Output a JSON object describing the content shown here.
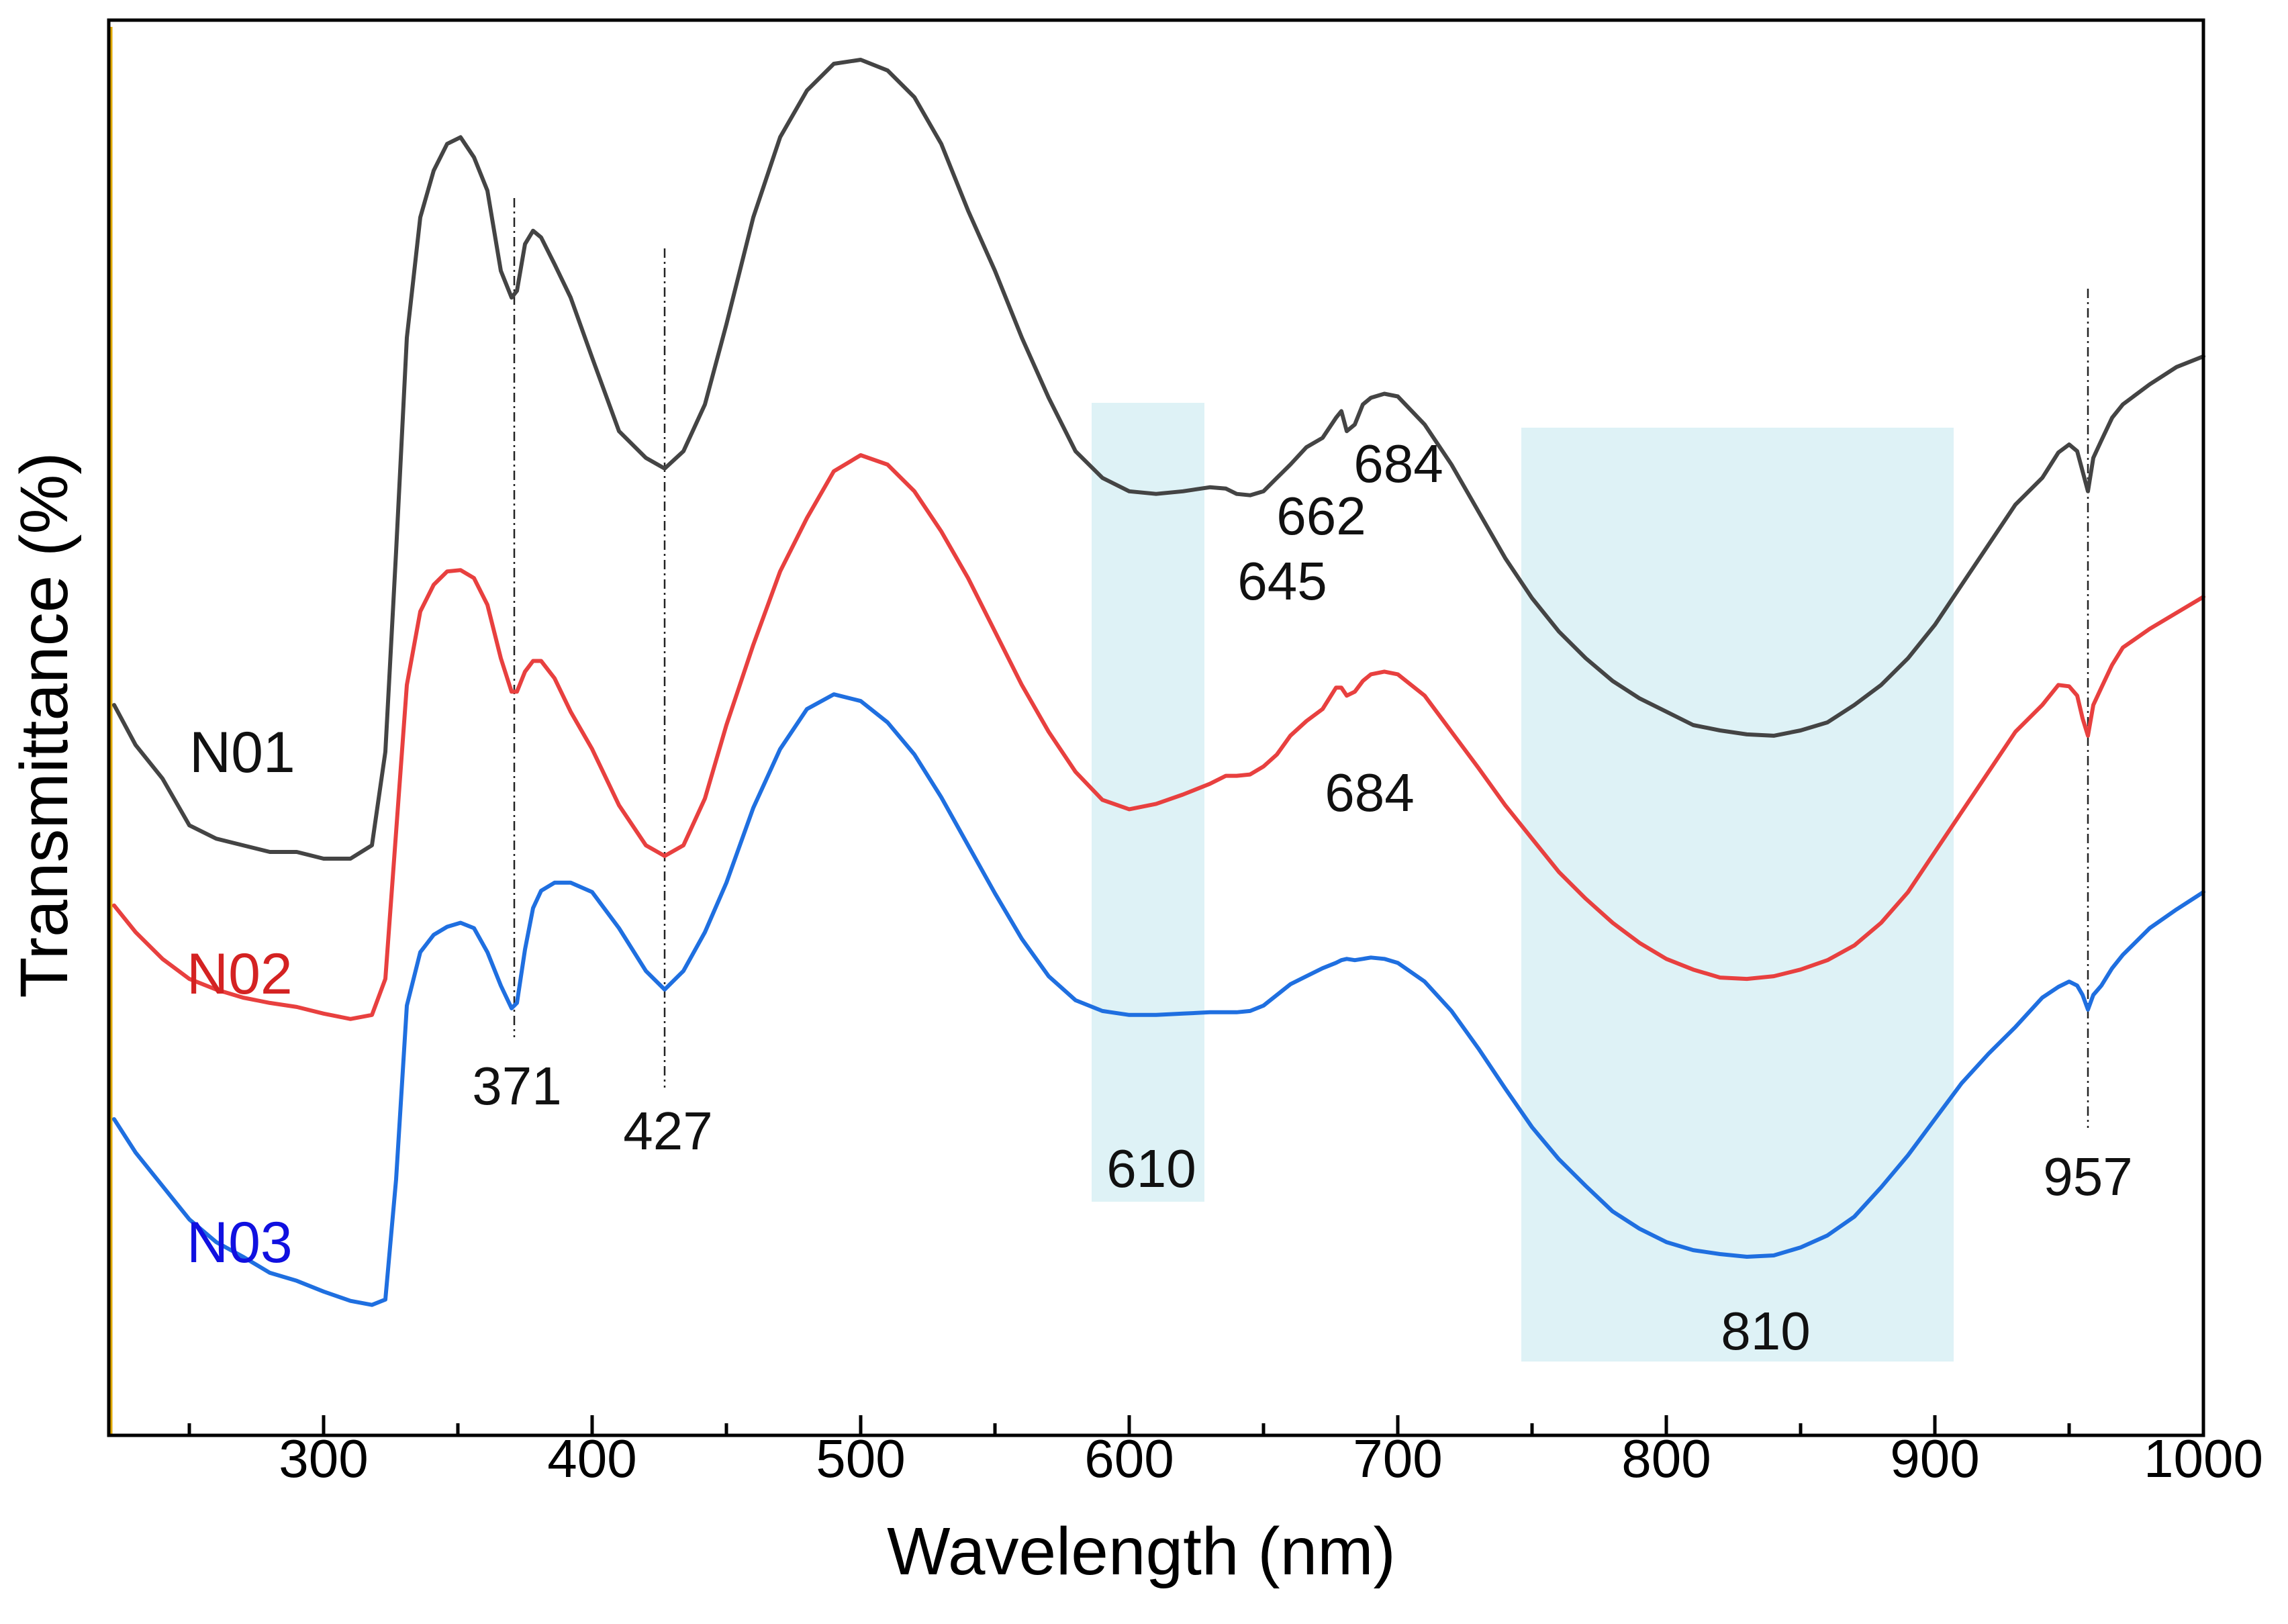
{
  "chart_data": {
    "type": "line",
    "title": "",
    "xlabel": "Wavelength (nm)",
    "ylabel": "Transmittance  (%)",
    "xlim": [
      220,
      1000
    ],
    "ylim": [
      0,
      100
    ],
    "x_ticks": [
      300,
      400,
      500,
      600,
      700,
      800,
      900,
      1000
    ],
    "y_ticks_shown": false,
    "grid": false,
    "legend": "inline text labels at left of curves",
    "series": [
      {
        "name": "N01",
        "color": "#444444",
        "label_color": "#111111",
        "x": [
          222,
          230,
          240,
          250,
          260,
          270,
          280,
          290,
          300,
          310,
          318,
          323,
          327,
          331,
          336,
          341,
          346,
          351,
          356,
          361,
          366,
          370,
          372,
          375,
          378,
          381,
          386,
          392,
          400,
          410,
          420,
          427,
          434,
          442,
          450,
          460,
          470,
          480,
          490,
          500,
          510,
          520,
          530,
          540,
          550,
          560,
          570,
          580,
          590,
          600,
          610,
          620,
          630,
          636,
          640,
          645,
          650,
          655,
          660,
          666,
          672,
          677,
          679,
          681,
          684,
          687,
          690,
          695,
          700,
          710,
          720,
          730,
          740,
          750,
          760,
          770,
          780,
          790,
          800,
          810,
          820,
          830,
          840,
          850,
          860,
          870,
          880,
          890,
          900,
          910,
          920,
          930,
          940,
          946,
          950,
          953,
          955,
          957,
          959,
          962,
          966,
          970,
          980,
          990,
          1000
        ],
        "y": [
          51.5,
          48.5,
          46,
          42.5,
          41.5,
          41,
          40.5,
          40.5,
          40,
          40,
          41,
          48,
          63,
          79,
          88,
          91.5,
          93.5,
          94,
          92.5,
          90,
          84,
          82,
          82.5,
          86,
          87,
          86.5,
          84.5,
          82,
          77.5,
          72,
          70,
          69.2,
          70.5,
          74,
          80,
          88,
          94,
          97.5,
          99.5,
          99.8,
          99,
          97,
          93.5,
          88.5,
          84,
          79,
          74.5,
          70.5,
          68.5,
          67.5,
          67.3,
          67.5,
          67.8,
          67.7,
          67.3,
          67.2,
          67.5,
          68.5,
          69.5,
          70.8,
          71.5,
          73,
          73.5,
          72,
          72.5,
          74,
          74.5,
          74.8,
          74.6,
          72.5,
          69.5,
          66,
          62.5,
          59.5,
          57,
          55,
          53.3,
          52,
          51,
          50,
          49.6,
          49.3,
          49.2,
          49.6,
          50.2,
          51.5,
          53,
          55,
          57.5,
          60.5,
          63.5,
          66.5,
          68.5,
          70.4,
          71,
          70.5,
          69,
          67.5,
          70,
          71.3,
          73,
          74,
          75.5,
          76.8,
          77.6
        ]
      },
      {
        "name": "N02",
        "color": "#e8403f",
        "label_color": "#d42222",
        "x": [
          222,
          230,
          240,
          250,
          260,
          270,
          280,
          290,
          300,
          310,
          318,
          323,
          327,
          331,
          336,
          341,
          346,
          351,
          356,
          361,
          366,
          370,
          372,
          375,
          378,
          381,
          386,
          392,
          400,
          410,
          420,
          427,
          434,
          442,
          450,
          460,
          470,
          480,
          490,
          500,
          510,
          520,
          530,
          540,
          550,
          560,
          570,
          580,
          590,
          600,
          610,
          620,
          630,
          636,
          640,
          645,
          650,
          655,
          660,
          666,
          672,
          677,
          679,
          681,
          684,
          687,
          690,
          695,
          700,
          710,
          720,
          730,
          740,
          750,
          760,
          770,
          780,
          790,
          800,
          810,
          820,
          830,
          840,
          850,
          860,
          870,
          880,
          890,
          900,
          910,
          920,
          930,
          940,
          946,
          950,
          953,
          955,
          957,
          959,
          962,
          966,
          970,
          980,
          990,
          1000
        ],
        "y": [
          36.5,
          34.5,
          32.5,
          31,
          30.2,
          29.6,
          29.2,
          28.9,
          28.4,
          28,
          28.3,
          31,
          42,
          53,
          58.5,
          60.5,
          61.5,
          61.6,
          61,
          59,
          55,
          52.5,
          52.5,
          54,
          54.8,
          54.8,
          53.5,
          51,
          48.2,
          44,
          41,
          40.2,
          41,
          44.5,
          50,
          56,
          61.5,
          65.5,
          69,
          70.2,
          69.5,
          67.5,
          64.5,
          61,
          57,
          53,
          49.5,
          46.5,
          44.4,
          43.7,
          44.1,
          44.8,
          45.6,
          46.2,
          46.2,
          46.3,
          46.9,
          47.8,
          49.2,
          50.3,
          51.2,
          52.8,
          52.8,
          52.2,
          52.5,
          53.3,
          53.8,
          54,
          53.8,
          52.2,
          49.5,
          46.8,
          44,
          41.5,
          39,
          37,
          35.2,
          33.7,
          32.5,
          31.7,
          31.1,
          31,
          31.2,
          31.7,
          32.4,
          33.5,
          35.2,
          37.5,
          40.5,
          43.5,
          46.5,
          49.5,
          51.5,
          53,
          52.9,
          52.2,
          50.5,
          49.2,
          51.5,
          52.8,
          54.5,
          55.8,
          57.2,
          58.4,
          59.6
        ]
      },
      {
        "name": "N03",
        "color": "#1f6fe0",
        "label_color": "#1010e0",
        "x": [
          222,
          230,
          240,
          250,
          260,
          270,
          280,
          290,
          300,
          310,
          318,
          323,
          327,
          331,
          336,
          341,
          346,
          351,
          356,
          361,
          366,
          370,
          372,
          375,
          378,
          381,
          386,
          392,
          400,
          410,
          420,
          427,
          434,
          442,
          450,
          460,
          470,
          480,
          490,
          500,
          510,
          520,
          530,
          540,
          550,
          560,
          570,
          580,
          590,
          600,
          610,
          620,
          630,
          636,
          640,
          645,
          650,
          655,
          660,
          666,
          672,
          677,
          679,
          681,
          684,
          687,
          690,
          695,
          700,
          710,
          720,
          730,
          740,
          750,
          760,
          770,
          780,
          790,
          800,
          810,
          820,
          830,
          840,
          850,
          860,
          870,
          880,
          890,
          900,
          910,
          920,
          930,
          940,
          946,
          950,
          953,
          955,
          957,
          959,
          962,
          966,
          970,
          980,
          990,
          1000
        ],
        "y": [
          20.5,
          18,
          15.5,
          13,
          11.3,
          10.2,
          9,
          8.4,
          7.6,
          6.9,
          6.6,
          7,
          16,
          29,
          33,
          34.3,
          34.9,
          35.2,
          34.8,
          33,
          30.5,
          28.8,
          29.2,
          33.2,
          36.3,
          37.6,
          38.2,
          38.2,
          37.5,
          34.8,
          31.6,
          30.2,
          31.6,
          34.5,
          38.2,
          43.8,
          48.2,
          51.2,
          52.3,
          51.8,
          50.2,
          47.8,
          44.6,
          41,
          37.4,
          34,
          31.2,
          29.4,
          28.6,
          28.3,
          28.3,
          28.4,
          28.5,
          28.5,
          28.5,
          28.6,
          29,
          29.8,
          30.6,
          31.2,
          31.8,
          32.2,
          32.4,
          32.5,
          32.4,
          32.5,
          32.6,
          32.5,
          32.2,
          30.8,
          28.6,
          25.8,
          22.8,
          19.9,
          17.5,
          15.5,
          13.6,
          12.3,
          11.3,
          10.7,
          10.4,
          10.2,
          10.3,
          10.9,
          11.8,
          13.2,
          15.4,
          17.8,
          20.5,
          23.2,
          25.4,
          27.4,
          29.6,
          30.4,
          30.8,
          30.5,
          29.8,
          28.7,
          29.8,
          30.5,
          31.8,
          32.8,
          34.8,
          36.2,
          37.5
        ]
      }
    ],
    "highlight_bands": [
      {
        "x": [
          586,
          628
        ]
      },
      {
        "x": [
          746,
          907
        ]
      }
    ],
    "reference_lines_x": [
      371,
      427,
      957
    ],
    "annotations": [
      {
        "text": "371",
        "x": 371
      },
      {
        "text": "427",
        "x": 427
      },
      {
        "text": "610",
        "x": 610
      },
      {
        "text": "645",
        "x": 645
      },
      {
        "text": "662",
        "x": 662
      },
      {
        "text": "684",
        "x": 684,
        "series": "N01"
      },
      {
        "text": "684",
        "x": 684,
        "series": "N02"
      },
      {
        "text": "810",
        "x": 810
      },
      {
        "text": "957",
        "x": 957
      }
    ]
  }
}
